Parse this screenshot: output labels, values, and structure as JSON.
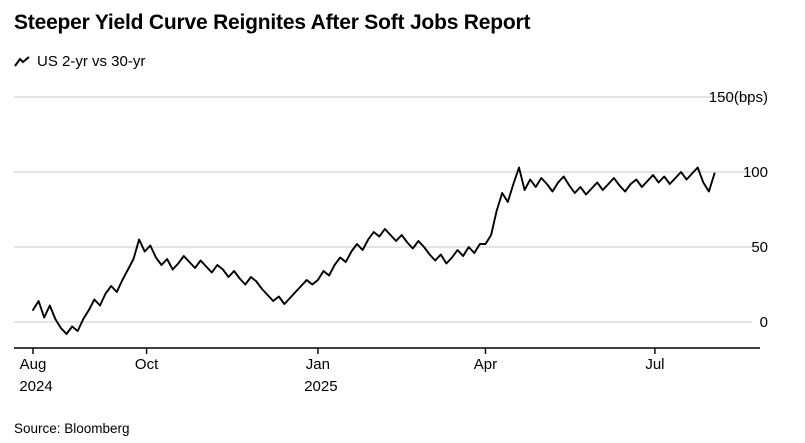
{
  "header": {
    "title": "Steeper Yield Curve Reignites After Soft Jobs Report",
    "legend_label": "US 2-yr vs 30-yr"
  },
  "footer": {
    "source": "Source: Bloomberg"
  },
  "colors": {
    "line": "#000000",
    "grid": "#c9c9c9",
    "axis": "#000000",
    "text": "#000000"
  },
  "chart_data": {
    "type": "line",
    "title": "Steeper Yield Curve Reignites After Soft Jobs Report",
    "series_name": "US 2-yr vs 30-yr spread",
    "unit": "bps",
    "x_mode": "days_from_start",
    "x_start": "Aug 2024",
    "step_days": 3,
    "values": [
      8,
      14,
      3,
      11,
      2,
      -4,
      -8,
      -3,
      -6,
      2,
      8,
      15,
      11,
      19,
      24,
      20,
      28,
      35,
      42,
      55,
      47,
      51,
      43,
      38,
      42,
      35,
      39,
      44,
      40,
      36,
      41,
      37,
      33,
      38,
      35,
      30,
      34,
      29,
      25,
      30,
      27,
      22,
      18,
      14,
      17,
      12,
      16,
      20,
      24,
      28,
      25,
      28,
      34,
      31,
      38,
      43,
      40,
      47,
      52,
      48,
      55,
      60,
      57,
      62,
      58,
      54,
      58,
      53,
      49,
      54,
      50,
      45,
      41,
      45,
      39,
      43,
      48,
      44,
      50,
      46,
      52,
      52,
      58,
      74,
      86,
      80,
      92,
      103,
      88,
      95,
      90,
      96,
      92,
      87,
      93,
      97,
      91,
      86,
      90,
      85,
      89,
      93,
      88,
      92,
      96,
      91,
      87,
      92,
      95,
      90,
      94,
      98,
      93,
      97,
      92,
      96,
      100,
      95,
      99,
      103,
      93,
      87,
      99
    ],
    "x_ticks": [
      {
        "day": 0,
        "label": "Aug",
        "sublabel": "2024"
      },
      {
        "day": 61,
        "label": "Oct",
        "sublabel": ""
      },
      {
        "day": 153,
        "label": "Jan",
        "sublabel": "2025"
      },
      {
        "day": 243,
        "label": "Apr",
        "sublabel": ""
      },
      {
        "day": 334,
        "label": "Jul",
        "sublabel": ""
      }
    ],
    "y_ticks": [
      {
        "value": 150,
        "label": "150(bps)"
      },
      {
        "value": 100,
        "label": "100"
      },
      {
        "value": 50,
        "label": "50"
      },
      {
        "value": 0,
        "label": "0"
      }
    ],
    "ylim": [
      -17,
      160
    ],
    "grid": true,
    "legend_position": "top-left"
  }
}
